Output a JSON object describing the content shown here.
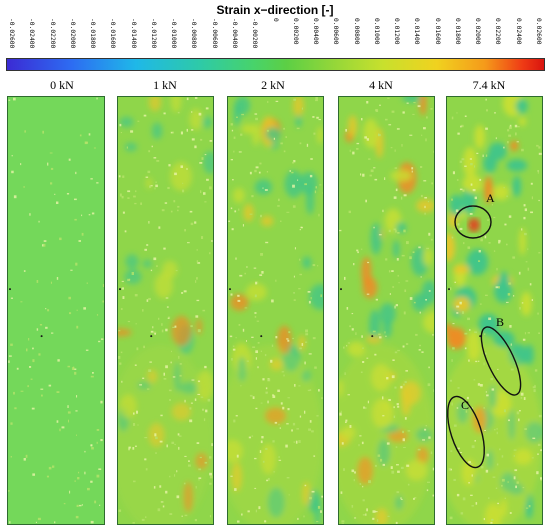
{
  "figure": {
    "title": "Strain x−direction [-]",
    "colorbar_ticks": [
      "-0.02600",
      "-0.02400",
      "-0.02200",
      "-0.02000",
      "-0.01800",
      "-0.01600",
      "-0.01400",
      "-0.01200",
      "-0.01000",
      "-0.00800",
      "-0.00600",
      "-0.00400",
      "-0.00200",
      "0",
      "0.00200",
      "0.00400",
      "0.00600",
      "0.00800",
      "0.01000",
      "0.01200",
      "0.01400",
      "0.01600",
      "0.01800",
      "0.02000",
      "0.02200",
      "0.02400",
      "0.02600"
    ],
    "colorbar_colors": [
      "#3b2bd4",
      "#2d6cf2",
      "#1fb8e8",
      "#2ecaa7",
      "#48d36a",
      "#5ccf45",
      "#8fd63a",
      "#c8e02d",
      "#f0d21f",
      "#f59a1a",
      "#ef3b15",
      "#d9140f"
    ],
    "panels": [
      {
        "label": "0 kN"
      },
      {
        "label": "1 kN"
      },
      {
        "label": "2 kN"
      },
      {
        "label": "4 kN"
      },
      {
        "label": "7.4 kN"
      }
    ],
    "annotations": [
      "A",
      "B",
      "C"
    ]
  }
}
